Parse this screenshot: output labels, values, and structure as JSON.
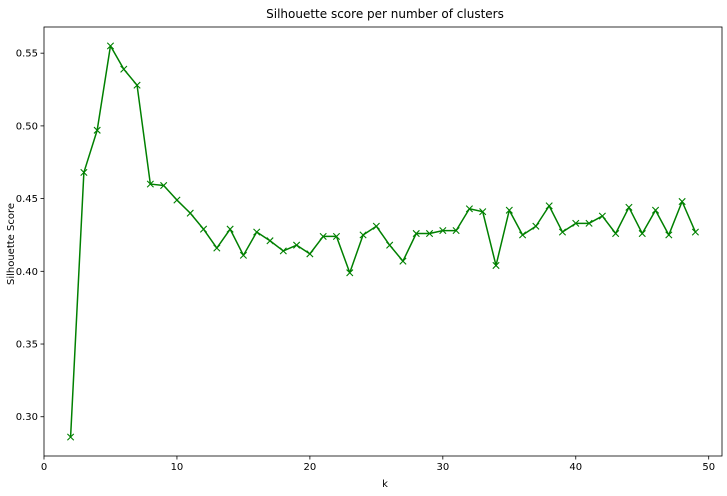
{
  "chart_data": {
    "type": "line",
    "title": "Silhouette score per number of clusters",
    "xlabel": "k",
    "ylabel": "Silhouette Score",
    "xlim": [
      0,
      51
    ],
    "ylim": [
      0.273,
      0.568
    ],
    "xticks": [
      0,
      10,
      20,
      30,
      40,
      50
    ],
    "yticks": [
      0.3,
      0.35,
      0.4,
      0.45,
      0.5,
      0.55
    ],
    "ytick_labels": [
      "0.30",
      "0.35",
      "0.40",
      "0.45",
      "0.50",
      "0.55"
    ],
    "grid": false,
    "legend": null,
    "color": "#008000",
    "marker": "x",
    "series": [
      {
        "x": [
          2,
          3,
          4,
          5,
          6,
          7,
          8,
          9,
          10,
          11,
          12,
          13,
          14,
          15,
          16,
          17,
          18,
          19,
          20,
          21,
          22,
          23,
          24,
          25,
          26,
          27,
          28,
          29,
          30,
          31,
          32,
          33,
          34,
          35,
          36,
          37,
          38,
          39,
          40,
          41,
          42,
          43,
          44,
          45,
          46,
          47,
          48,
          49
        ],
        "y": [
          0.286,
          0.468,
          0.497,
          0.555,
          0.539,
          0.528,
          0.46,
          0.459,
          0.449,
          0.44,
          0.429,
          0.416,
          0.429,
          0.411,
          0.427,
          0.421,
          0.414,
          0.418,
          0.412,
          0.424,
          0.424,
          0.399,
          0.425,
          0.431,
          0.418,
          0.407,
          0.426,
          0.426,
          0.428,
          0.428,
          0.443,
          0.441,
          0.404,
          0.442,
          0.425,
          0.431,
          0.445,
          0.427,
          0.433,
          0.433,
          0.438,
          0.426,
          0.444,
          0.426,
          0.442,
          0.425,
          0.448,
          0.427
        ]
      }
    ]
  }
}
